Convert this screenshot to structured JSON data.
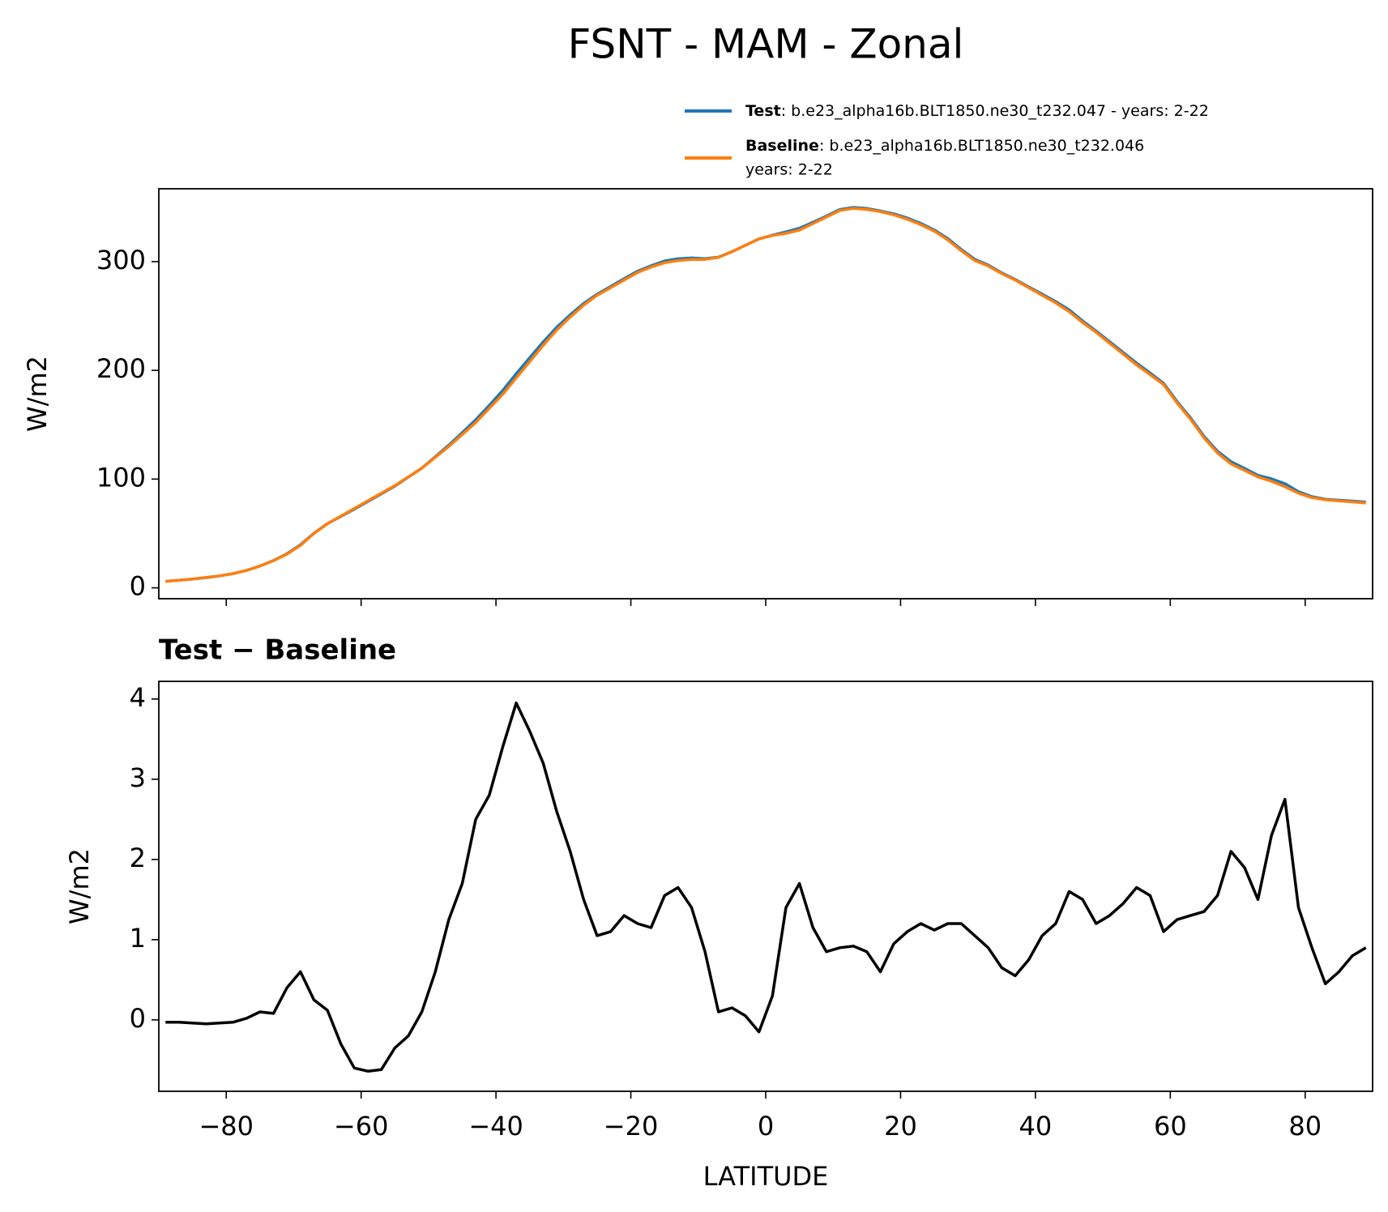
{
  "chart_data": [
    {
      "type": "line",
      "title": "FSNT - MAM - Zonal",
      "ylabel": "W/m2",
      "x": [
        -89,
        -87,
        -85,
        -83,
        -81,
        -79,
        -77,
        -75,
        -73,
        -71,
        -69,
        -67,
        -65,
        -63,
        -61,
        -59,
        -57,
        -55,
        -53,
        -51,
        -49,
        -47,
        -45,
        -43,
        -41,
        -39,
        -37,
        -35,
        -33,
        -31,
        -29,
        -27,
        -25,
        -23,
        -21,
        -19,
        -17,
        -15,
        -13,
        -11,
        -9,
        -7,
        -5,
        -3,
        -1,
        1,
        3,
        5,
        7,
        9,
        11,
        13,
        15,
        17,
        19,
        21,
        23,
        25,
        27,
        29,
        31,
        33,
        35,
        37,
        39,
        41,
        43,
        45,
        47,
        49,
        51,
        53,
        55,
        57,
        59,
        61,
        63,
        65,
        67,
        69,
        71,
        73,
        75,
        77,
        79,
        81,
        83,
        85,
        87,
        89
      ],
      "series": [
        {
          "name": "Test",
          "description": ": b.e23_alpha16b.BLT1850.ne30_t232.047 - years: 2-22",
          "color": "#1f77b4",
          "values": [
            6.0,
            7.0,
            8.0,
            9.4,
            11.0,
            13.0,
            16.0,
            20.1,
            25.1,
            31.4,
            39.6,
            50.2,
            59.1,
            65.7,
            72.4,
            79.4,
            86.4,
            93.6,
            101.8,
            110.1,
            120.6,
            131.2,
            142.7,
            154.5,
            167.8,
            181.4,
            197.0,
            211.6,
            226.2,
            239.6,
            251.1,
            261.5,
            270.0,
            277.1,
            284.3,
            291.2,
            296.2,
            300.6,
            302.6,
            303.4,
            302.8,
            304.1,
            309.2,
            315.1,
            320.9,
            324.3,
            327.4,
            330.7,
            336.2,
            341.9,
            347.9,
            349.9,
            348.9,
            346.6,
            344.0,
            340.1,
            335.2,
            329.1,
            321.2,
            311.2,
            302.1,
            296.9,
            289.7,
            283.6,
            276.8,
            270.1,
            263.2,
            255.6,
            245.5,
            236.2,
            226.3,
            216.5,
            206.7,
            197.6,
            188.1,
            171.3,
            156.3,
            139.4,
            125.6,
            116.1,
            109.9,
            103.5,
            100.3,
            95.8,
            88.4,
            83.9,
            81.5,
            80.6,
            79.8,
            78.9
          ]
        },
        {
          "name": "Baseline",
          "description": [
            ": b.e23_alpha16b.BLT1850.ne30_t232.046",
            "years: 2-22"
          ],
          "color": "#ff7f0e",
          "values": [
            6,
            7,
            8,
            9.5,
            11,
            13,
            16,
            20,
            25,
            31,
            39,
            50,
            59,
            66,
            73,
            80,
            87,
            94,
            102,
            110,
            120,
            130,
            141,
            152,
            165,
            178,
            193,
            208,
            223,
            237,
            249,
            260,
            269,
            276,
            283,
            290,
            295,
            299,
            301,
            302,
            302,
            304,
            309,
            315,
            321,
            324,
            326,
            329,
            335,
            341,
            347,
            349,
            348,
            346,
            343,
            339,
            334,
            328,
            320,
            310,
            301,
            296,
            289,
            283,
            276,
            269,
            262,
            254,
            244,
            235,
            225,
            215,
            205,
            196,
            187,
            170,
            155,
            138,
            124,
            114,
            108,
            102,
            98,
            93,
            87,
            83,
            81,
            80,
            79,
            78
          ]
        }
      ],
      "xlim": [
        -90,
        90
      ],
      "xticks": [
        -80,
        -60,
        -40,
        -20,
        0,
        20,
        40,
        60,
        80
      ],
      "ylim": [
        -10,
        367
      ],
      "yticks": [
        0,
        100,
        200,
        300
      ]
    },
    {
      "type": "line",
      "title": "Test − Baseline",
      "ylabel": "W/m2",
      "xlabel": "LATITUDE",
      "x": [
        -89,
        -87,
        -85,
        -83,
        -81,
        -79,
        -77,
        -75,
        -73,
        -71,
        -69,
        -67,
        -65,
        -63,
        -61,
        -59,
        -57,
        -55,
        -53,
        -51,
        -49,
        -47,
        -45,
        -43,
        -41,
        -39,
        -37,
        -35,
        -33,
        -31,
        -29,
        -27,
        -25,
        -23,
        -21,
        -19,
        -17,
        -15,
        -13,
        -11,
        -9,
        -7,
        -5,
        -3,
        -1,
        1,
        3,
        5,
        7,
        9,
        11,
        13,
        15,
        17,
        19,
        21,
        23,
        25,
        27,
        29,
        31,
        33,
        35,
        37,
        39,
        41,
        43,
        45,
        47,
        49,
        51,
        53,
        55,
        57,
        59,
        61,
        63,
        65,
        67,
        69,
        71,
        73,
        75,
        77,
        79,
        81,
        83,
        85,
        87,
        89
      ],
      "color": "#000000",
      "values": [
        -0.03,
        -0.03,
        -0.04,
        -0.05,
        -0.04,
        -0.03,
        0.02,
        0.1,
        0.08,
        0.4,
        0.6,
        0.25,
        0.12,
        -0.3,
        -0.6,
        -0.64,
        -0.62,
        -0.35,
        -0.2,
        0.1,
        0.6,
        1.25,
        1.7,
        2.5,
        2.8,
        3.4,
        3.95,
        3.6,
        3.2,
        2.6,
        2.1,
        1.5,
        1.05,
        1.1,
        1.3,
        1.2,
        1.15,
        1.55,
        1.65,
        1.4,
        0.85,
        0.1,
        0.15,
        0.05,
        -0.15,
        0.3,
        1.4,
        1.7,
        1.15,
        0.85,
        0.9,
        0.92,
        0.85,
        0.6,
        0.95,
        1.1,
        1.2,
        1.12,
        1.2,
        1.2,
        1.05,
        0.9,
        0.65,
        0.55,
        0.75,
        1.05,
        1.2,
        1.6,
        1.5,
        1.2,
        1.3,
        1.45,
        1.65,
        1.55,
        1.1,
        1.25,
        1.3,
        1.35,
        1.55,
        2.1,
        1.9,
        1.5,
        2.3,
        2.75,
        1.4,
        0.9,
        0.45,
        0.6,
        0.8,
        0.9
      ],
      "xlim": [
        -90,
        90
      ],
      "xticks": [
        {
          "value": -80,
          "label": "−80"
        },
        {
          "value": -60,
          "label": "−60"
        },
        {
          "value": -40,
          "label": "−40"
        },
        {
          "value": -20,
          "label": "−20"
        },
        0,
        20,
        40,
        60,
        80
      ],
      "ylim": [
        -0.89,
        4.22
      ],
      "yticks": [
        0,
        1,
        2,
        3,
        4
      ]
    }
  ]
}
